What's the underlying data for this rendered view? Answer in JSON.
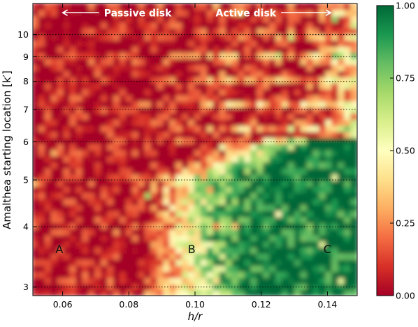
{
  "chart_data": {
    "type": "heatmap",
    "xlabel": "h/r",
    "ylabel": "Amalthea starting location [k′]",
    "x_range": [
      0.051,
      0.149
    ],
    "y_range": [
      2.88,
      11.6
    ],
    "y_scale": "log",
    "x_ticks": [
      "0.06",
      "0.08",
      "0.10",
      "0.12",
      "0.14"
    ],
    "x_tick_values": [
      0.06,
      0.08,
      0.1,
      0.12,
      0.14
    ],
    "y_ticks": [
      "3",
      "4",
      "5",
      "6",
      "7",
      "8",
      "9",
      "10"
    ],
    "y_tick_values": [
      3,
      4,
      5,
      6,
      7,
      8,
      9,
      10
    ],
    "colorbar": {
      "range": [
        0.0,
        1.0
      ],
      "ticks": [
        "0.00",
        "0.25",
        "0.50",
        "0.75",
        "1.00"
      ],
      "tick_values": [
        0.0,
        0.25,
        0.5,
        0.75,
        1.0
      ],
      "colormap": "RdYlGn",
      "stops": [
        "#a50026",
        "#d73027",
        "#f46d43",
        "#fdae61",
        "#fee08b",
        "#ffffbf",
        "#d9ef8b",
        "#a6d96a",
        "#66bd63",
        "#1a9850",
        "#006837"
      ]
    },
    "annotations": {
      "passive": "Passive disk",
      "active": "Active disk",
      "region_a": "A",
      "region_b": "B",
      "region_c": "C"
    },
    "region_label_values": {
      "a": {
        "x": 0.059,
        "y": 3.6
      },
      "b": {
        "x": 0.099,
        "y": 3.6
      },
      "c": {
        "x": 0.14,
        "y": 3.6
      }
    },
    "arrow_values": {
      "passive": {
        "x_from": 0.071,
        "x_to": 0.06,
        "y": 11.1
      },
      "active": {
        "x_from": 0.126,
        "x_to": 0.141,
        "y": 11.1
      }
    },
    "gridlines_y": [
      3,
      4,
      5,
      6,
      7,
      8,
      9,
      10
    ],
    "grid_style": "dotted"
  }
}
